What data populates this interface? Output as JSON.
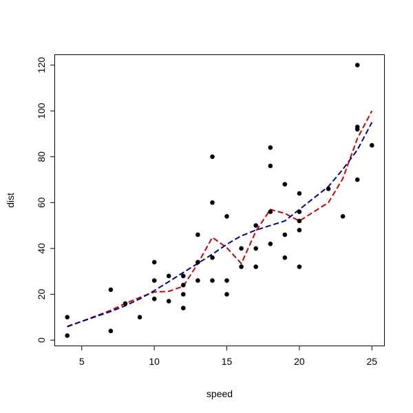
{
  "chart_data": {
    "type": "scatter",
    "title": "",
    "xlabel": "speed",
    "ylabel": "dist",
    "xlim": [
      3.16,
      25.84
    ],
    "ylim": [
      -2.36,
      124.36
    ],
    "xticks": [
      5,
      10,
      15,
      20,
      25
    ],
    "yticks": [
      0,
      20,
      40,
      60,
      80,
      100,
      120
    ],
    "grid": false,
    "legend": "none",
    "points": {
      "x": [
        4,
        4,
        7,
        7,
        8,
        9,
        10,
        10,
        10,
        11,
        11,
        12,
        12,
        12,
        12,
        13,
        13,
        13,
        13,
        14,
        14,
        14,
        14,
        15,
        15,
        15,
        16,
        16,
        17,
        17,
        17,
        18,
        18,
        18,
        18,
        19,
        19,
        19,
        20,
        20,
        20,
        20,
        20,
        22,
        23,
        24,
        24,
        24,
        24,
        25
      ],
      "y": [
        2,
        10,
        4,
        22,
        16,
        10,
        18,
        26,
        34,
        17,
        28,
        14,
        20,
        24,
        28,
        26,
        34,
        34,
        46,
        26,
        36,
        60,
        80,
        20,
        26,
        54,
        32,
        40,
        32,
        40,
        50,
        42,
        56,
        76,
        84,
        36,
        46,
        68,
        32,
        48,
        52,
        56,
        64,
        66,
        54,
        70,
        92,
        93,
        120,
        85
      ]
    },
    "series": [
      {
        "color": "#cc0000",
        "style": "dashed",
        "x": [
          4,
          7,
          8,
          9,
          10,
          11,
          12,
          13,
          14,
          15,
          16,
          17,
          18,
          19,
          20,
          22,
          23,
          24,
          25
        ],
        "y": [
          5.8,
          13.0,
          16.0,
          18.6,
          21.0,
          21.3,
          23.5,
          33.4,
          44.8,
          40.3,
          33.4,
          47.5,
          57.0,
          55.3,
          52.0,
          60.0,
          70.5,
          88.0,
          100.0
        ]
      },
      {
        "color": "#000099",
        "style": "dashed",
        "x": [
          4,
          7,
          8,
          9,
          10,
          11,
          12,
          13,
          14,
          15,
          16,
          17,
          18,
          19,
          20,
          22,
          23,
          24,
          25
        ],
        "y": [
          6.0,
          12.5,
          15.0,
          18.0,
          21.6,
          25.5,
          29.5,
          33.5,
          37.5,
          41.8,
          45.5,
          48.0,
          50.0,
          52.0,
          57.0,
          67.0,
          74.5,
          83.0,
          95.0
        ]
      }
    ],
    "colors": {
      "points": "#000000",
      "box": "#000000"
    }
  }
}
